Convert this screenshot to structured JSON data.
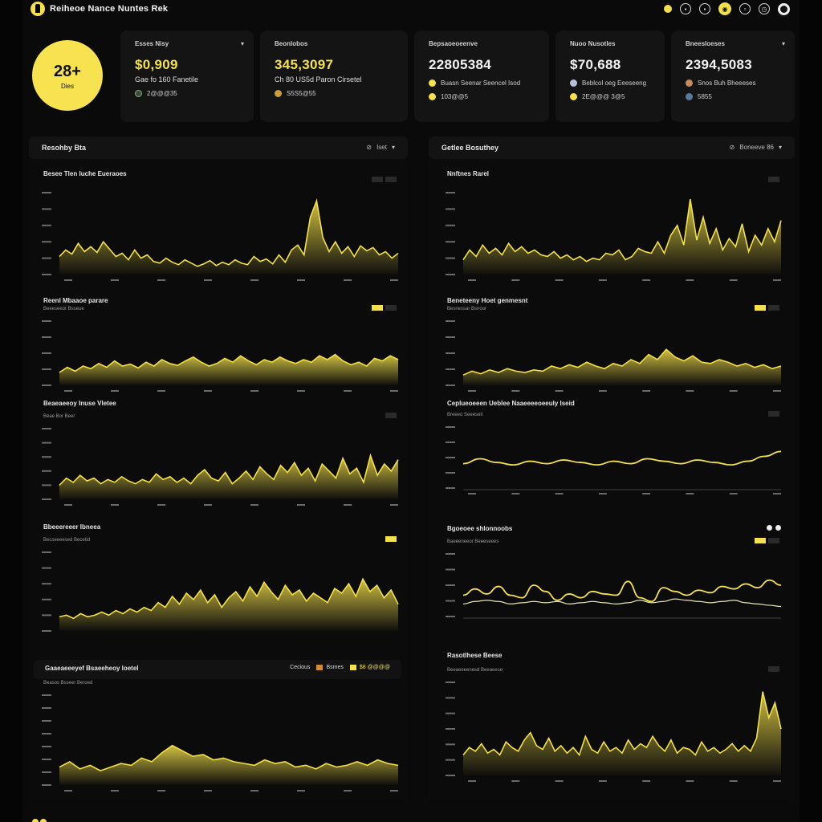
{
  "colors": {
    "accent": "#f3e04a",
    "background": "#0a0a0a",
    "card": "#141414"
  },
  "app": {
    "title": "Reiheoe Nance Nuntes Rek"
  },
  "topbar_icons": [
    "bell-icon",
    "lock-icon",
    "settings-icon",
    "profile-icon",
    "grid-icon",
    "clock-icon",
    "power-icon"
  ],
  "badge": {
    "value": "28+",
    "label": "Dies"
  },
  "stats": [
    {
      "title": "Esses Nisy",
      "value": "$0,909",
      "sub": "Gae fo 160 Fanetile",
      "footer": "2@@@35",
      "value_color": "yellow"
    },
    {
      "title": "Beonlobos",
      "value": "345,3097",
      "sub": "Ch 80 US5d Paron Cirsetel",
      "footer": "S5S5@55",
      "value_color": "yellow"
    },
    {
      "title": "Bepsaoeoeenve",
      "value": "228­05384",
      "sub": "Buasn Seenar Seencel Isod",
      "footer": "103@@5",
      "value_color": "white",
      "sub2": ""
    },
    {
      "title": "Nuoo Nusotles",
      "value": "$70,688",
      "sub": "Beblcol oeg Eeeseeng",
      "footer": "2E@@@ 3@5",
      "value_color": "white"
    },
    {
      "title": "Bneesloeses",
      "value": "2394,5083",
      "sub": "Snos Buh Bheeeses",
      "footer": "5855",
      "value_color": "white"
    }
  ],
  "left_panel": {
    "title": "Resohby Bta",
    "controls": "Iset"
  },
  "right_panel": {
    "title": "Getlee Bosuthey",
    "controls": "Boneeve 86"
  },
  "charts": [
    {
      "id": "c1",
      "title": "Besee Tlen Iuche Eueraoes",
      "sub": "",
      "btns": [
        "",
        ""
      ]
    },
    {
      "id": "c2",
      "title": "Reenl Mbaaoe parare",
      "sub": "Beeeseeor Bsseue",
      "btns": [
        "",
        ""
      ]
    },
    {
      "id": "c3",
      "title": "Beaeaeeoy Inuse Vletee",
      "sub": "Beae Bor Beer",
      "btns": [
        ""
      ]
    },
    {
      "id": "c4",
      "title": "Bbeeereeer Ibneea",
      "sub": "Becseeeesed Becetid",
      "btns": [
        ""
      ]
    },
    {
      "id": "c5",
      "title": "Gaaeaeeeyef Bsaeeheoy loetel",
      "sub": "Beasos Bsseer Beroed",
      "legend": [
        "Cecious",
        "Bsmes",
        "$8 @@@@"
      ]
    },
    {
      "id": "c6",
      "title": "Nnftnes Rarel",
      "sub": "",
      "btns": [
        ""
      ]
    },
    {
      "id": "c7",
      "title": "Beneteeny Hoet genmesnt",
      "sub": "Besnessar Bsnoor",
      "btns": [
        "",
        ""
      ]
    },
    {
      "id": "c8",
      "title": "Ceplueoeeen Ueblee Naaeeeeoeeuly Iseid",
      "sub": "Breeeo Seeesell",
      "btns": [
        ""
      ]
    },
    {
      "id": "c9",
      "title": "Bgoeoee shlonnoobs",
      "sub": "Baeeeneeor Beeeseees",
      "btns": [
        "",
        ""
      ]
    },
    {
      "id": "c10",
      "title": "Rasotlhese Beese",
      "sub": "Beeaeeeenesd Beeaeese",
      "btns": [
        ""
      ]
    }
  ],
  "chart_data": [
    {
      "type": "area",
      "title": "Besee Tlen Iuche Eueraoes",
      "values": [
        22,
        30,
        25,
        38,
        28,
        34,
        27,
        40,
        31,
        22,
        26,
        18,
        30,
        20,
        24,
        16,
        14,
        20,
        15,
        12,
        18,
        14,
        10,
        13,
        17,
        11,
        15,
        12,
        18,
        14,
        12,
        22,
        16,
        19,
        13,
        24,
        15,
        30,
        36,
        24,
        70,
        90,
        45,
        28,
        40,
        26,
        34,
        22,
        35,
        29,
        33,
        24,
        28,
        20,
        26
      ]
    },
    {
      "type": "area",
      "title": "Reenl Mbaaoe parare",
      "values": [
        20,
        28,
        22,
        30,
        26,
        34,
        28,
        38,
        30,
        33,
        27,
        36,
        30,
        40,
        34,
        31,
        38,
        44,
        36,
        30,
        34,
        42,
        36,
        46,
        38,
        32,
        40,
        36,
        44,
        38,
        34,
        40,
        36,
        46,
        40,
        48,
        38,
        32,
        36,
        30,
        42,
        38,
        46,
        40
      ]
    },
    {
      "type": "area",
      "title": "Beaeaeeoy Inuse Vletee",
      "values": [
        20,
        30,
        24,
        34,
        26,
        30,
        22,
        28,
        24,
        32,
        26,
        22,
        28,
        24,
        36,
        28,
        32,
        24,
        30,
        22,
        34,
        42,
        30,
        26,
        38,
        22,
        30,
        40,
        28,
        46,
        36,
        28,
        48,
        38,
        52,
        34,
        44,
        26,
        50,
        40,
        30,
        58,
        36,
        44,
        24,
        62,
        34,
        50,
        40,
        56
      ]
    },
    {
      "type": "area",
      "title": "Bbeeereeer Ibneea",
      "values": [
        18,
        20,
        16,
        22,
        18,
        20,
        24,
        20,
        26,
        22,
        28,
        24,
        30,
        26,
        36,
        30,
        44,
        34,
        48,
        40,
        52,
        36,
        46,
        30,
        42,
        50,
        38,
        56,
        44,
        62,
        50,
        40,
        58,
        46,
        52,
        38,
        48,
        42,
        36,
        54,
        48,
        60,
        44,
        66,
        50,
        58,
        42,
        52,
        34
      ]
    },
    {
      "type": "area",
      "title": "Gaaeaeeeyef Bsaeeheoy loetel",
      "values": [
        20,
        26,
        18,
        22,
        16,
        20,
        24,
        22,
        30,
        26,
        36,
        44,
        38,
        32,
        34,
        28,
        30,
        26,
        24,
        22,
        28,
        24,
        26,
        20,
        22,
        18,
        24,
        20,
        22,
        26,
        22,
        28,
        24,
        22
      ]
    },
    {
      "type": "area",
      "title": "Nnftnes Rarel",
      "values": [
        18,
        30,
        22,
        36,
        26,
        32,
        24,
        38,
        28,
        34,
        26,
        30,
        24,
        22,
        28,
        20,
        24,
        18,
        22,
        16,
        20,
        18,
        26,
        24,
        30,
        18,
        22,
        32,
        28,
        26,
        40,
        26,
        48,
        60,
        36,
        92,
        42,
        70,
        38,
        56,
        30,
        44,
        34,
        62,
        28,
        48,
        36,
        56,
        40,
        66
      ]
    },
    {
      "type": "area",
      "title": "Beneteeny Hoet genmesnt",
      "values": [
        16,
        22,
        18,
        24,
        20,
        26,
        22,
        20,
        24,
        22,
        30,
        26,
        32,
        28,
        36,
        30,
        26,
        34,
        30,
        40,
        34,
        48,
        40,
        56,
        44,
        38,
        46,
        36,
        34,
        40,
        36,
        30,
        34,
        28,
        32,
        26,
        30
      ]
    },
    {
      "type": "line",
      "title": "Ceplueoeeen Ueblee Naaeeeeoeeuly Iseid",
      "values": [
        40,
        48,
        42,
        38,
        44,
        40,
        46,
        42,
        38,
        44,
        40,
        48,
        44,
        40,
        46,
        42,
        38,
        44,
        52,
        60
      ]
    },
    {
      "type": "line",
      "title": "Bgoeoee shlonnoobs",
      "series": [
        {
          "values": [
            34,
            44,
            36,
            48,
            34,
            30,
            50,
            40,
            26,
            36,
            30,
            40,
            36,
            34,
            56,
            30,
            24,
            46,
            40,
            34,
            42,
            38,
            48,
            44,
            52,
            46,
            58,
            50
          ]
        },
        {
          "values": [
            20,
            24,
            26,
            24,
            20,
            22,
            24,
            22,
            24,
            20,
            22,
            24,
            22,
            20,
            22,
            26,
            22,
            24,
            28,
            26,
            24,
            22,
            24,
            26,
            22,
            20,
            18,
            16
          ]
        }
      ]
    },
    {
      "type": "area",
      "title": "Rasotlhese Beese",
      "values": [
        22,
        30,
        26,
        34,
        24,
        28,
        22,
        36,
        30,
        26,
        38,
        46,
        32,
        28,
        40,
        26,
        32,
        24,
        30,
        22,
        42,
        28,
        24,
        36,
        26,
        30,
        24,
        38,
        28,
        34,
        30,
        42,
        32,
        26,
        38,
        24,
        30,
        28,
        22,
        36,
        26,
        30,
        24,
        28,
        34,
        26,
        32,
        26,
        40,
        90,
        62,
        78,
        50
      ]
    }
  ]
}
